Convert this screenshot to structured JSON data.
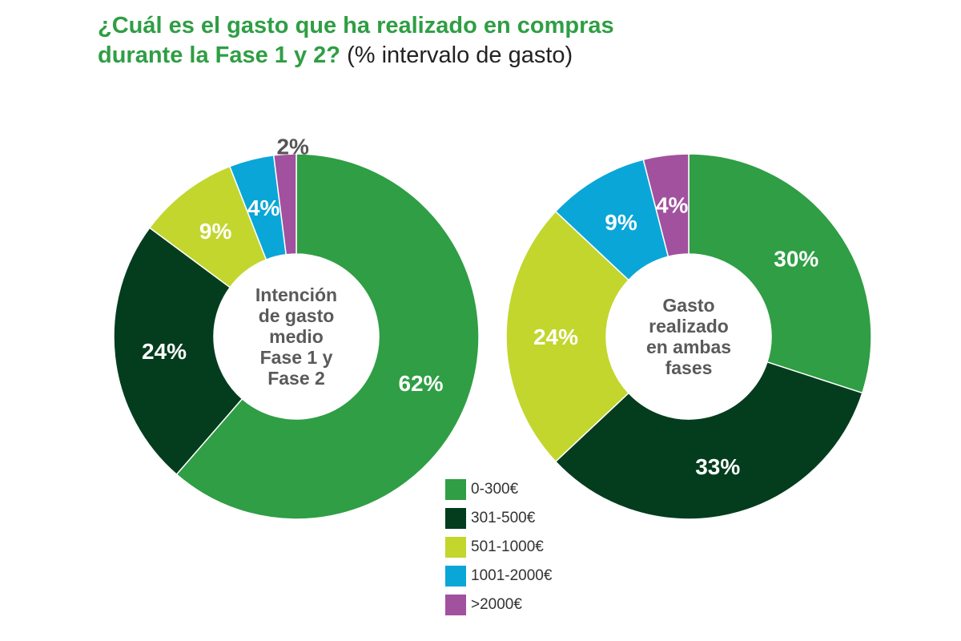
{
  "title": {
    "line1": "¿Cuál es el gasto que ha realizado en compras",
    "line2_bold": "durante la Fase 1 y 2?",
    "line2_rest": "(% intervalo de gasto)"
  },
  "chart_data": [
    {
      "type": "pie",
      "center_label": [
        "Intención",
        "de gasto",
        "medio",
        "Fase 1 y",
        "Fase 2"
      ],
      "categories": [
        "0-300€",
        "301-500€",
        "501-1000€",
        "1001-2000€",
        ">2000€"
      ],
      "values": [
        62,
        24,
        9,
        4,
        2
      ],
      "labels": [
        "62%",
        "24%",
        "9%",
        "4%",
        "2%"
      ]
    },
    {
      "type": "pie",
      "center_label": [
        "Gasto",
        "realizado",
        "en ambas",
        "fases"
      ],
      "categories": [
        "0-300€",
        "301-500€",
        "501-1000€",
        "1001-2000€",
        ">2000€"
      ],
      "values": [
        30,
        33,
        24,
        9,
        4
      ],
      "labels": [
        "30%",
        "33%",
        "24%",
        "9%",
        "4%"
      ]
    }
  ],
  "legend": [
    {
      "label": "0-300€",
      "color": "#2f9e44"
    },
    {
      "label": "301-500€",
      "color": "#033d1d"
    },
    {
      "label": "501-1000€",
      "color": "#c2d62e"
    },
    {
      "label": "1001-2000€",
      "color": "#0aa6d8"
    },
    {
      "label": ">2000€",
      "color": "#a2519e"
    }
  ]
}
